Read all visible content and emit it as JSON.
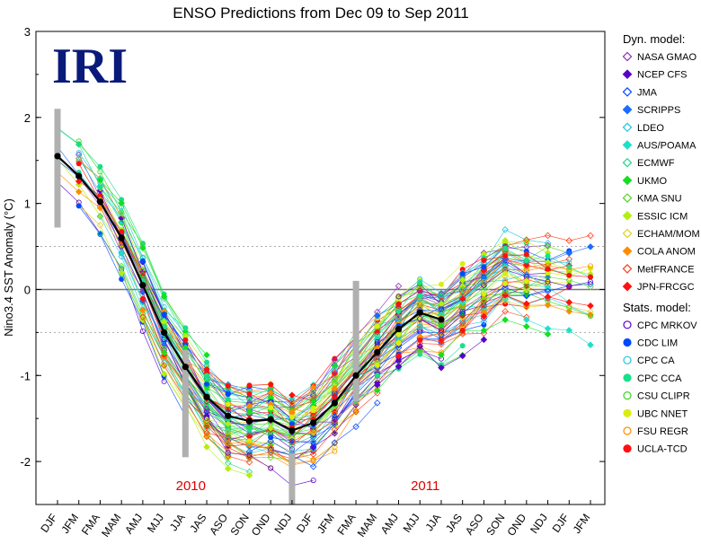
{
  "chart_data": {
    "type": "line",
    "title": "ENSO Predictions from Dec 09 to Sep 2011",
    "logo": "IRI",
    "ylabel": "Nino3.4 SST Anomaly (°C)",
    "xlabel": "",
    "ylim": [
      -2.5,
      3
    ],
    "yticks": [
      -2,
      -1,
      0,
      1,
      2,
      3
    ],
    "dotted_reference_lines": [
      0.5,
      -0.5
    ],
    "zero_line": 0,
    "categories": [
      "DJF",
      "JFM",
      "FMA",
      "MAM",
      "AMJ",
      "MJJ",
      "JJA",
      "JAS",
      "ASO",
      "SON",
      "OND",
      "NDJ",
      "DJF",
      "JFM",
      "FMA",
      "MAM",
      "AMJ",
      "MJJ",
      "JJA",
      "JAS",
      "ASO",
      "SON",
      "OND",
      "NDJ",
      "DJF",
      "JFM"
    ],
    "year_labels": [
      {
        "text": "2010",
        "category_index": 6
      },
      {
        "text": "2011",
        "category_index": 17
      }
    ],
    "observed": {
      "color": "#000000",
      "values": [
        1.55,
        1.32,
        1.02,
        0.6,
        0.05,
        -0.5,
        -0.9,
        -1.25,
        -1.47,
        -1.53,
        -1.51,
        -1.64,
        -1.55,
        -1.32,
        -1.0,
        -0.73,
        -0.46,
        -0.27,
        -0.35
      ]
    },
    "observed_spread_bars": [
      {
        "category_index": 0,
        "low": 0.72,
        "high": 2.1
      },
      {
        "category_index": 6,
        "low": -1.95,
        "high": -0.7
      },
      {
        "category_index": 11,
        "low": -2.5,
        "high": -1.9
      },
      {
        "category_index": 14,
        "low": -1.3,
        "high": 0.1
      }
    ],
    "legend_groups": [
      {
        "heading": "Dyn. model:",
        "entries": [
          {
            "name": "NASA GMAO",
            "color": "#8b2fb5",
            "marker": "diamond-open"
          },
          {
            "name": "NCEP CFS",
            "color": "#5a00c8",
            "marker": "diamond-filled"
          },
          {
            "name": "JMA",
            "color": "#0048ff",
            "marker": "diamond-open"
          },
          {
            "name": "SCRIPPS",
            "color": "#1a6cff",
            "marker": "diamond-filled"
          },
          {
            "name": "LDEO",
            "color": "#22c4dd",
            "marker": "diamond-open"
          },
          {
            "name": "AUS/POAMA",
            "color": "#1fe0c8",
            "marker": "diamond-filled"
          },
          {
            "name": "ECMWF",
            "color": "#20d890",
            "marker": "diamond-open"
          },
          {
            "name": "UKMO",
            "color": "#14e01e",
            "marker": "diamond-filled"
          },
          {
            "name": "KMA SNU",
            "color": "#55d820",
            "marker": "diamond-open"
          },
          {
            "name": "ESSIC ICM",
            "color": "#b4ee10",
            "marker": "diamond-filled"
          },
          {
            "name": "ECHAM/MOM",
            "color": "#e0d020",
            "marker": "diamond-open"
          },
          {
            "name": "COLA ANOM",
            "color": "#ff8c00",
            "marker": "diamond-filled"
          },
          {
            "name": "MetFRANCE",
            "color": "#ff3a1a",
            "marker": "diamond-open"
          },
          {
            "name": "JPN-FRCGC",
            "color": "#ff1010",
            "marker": "diamond-filled"
          }
        ]
      },
      {
        "heading": "Stats. model:",
        "entries": [
          {
            "name": "CPC MRKOV",
            "color": "#5a00c8",
            "marker": "circle-open"
          },
          {
            "name": "CDC LIM",
            "color": "#0048ff",
            "marker": "circle-filled"
          },
          {
            "name": "CPC CA",
            "color": "#22c4dd",
            "marker": "circle-open"
          },
          {
            "name": "CPC CCA",
            "color": "#18e08a",
            "marker": "circle-filled"
          },
          {
            "name": "CSU CLIPR",
            "color": "#3ad820",
            "marker": "circle-open"
          },
          {
            "name": "UBC NNET",
            "color": "#d8ee10",
            "marker": "circle-filled"
          },
          {
            "name": "FSU REGR",
            "color": "#ff8c00",
            "marker": "circle-open"
          },
          {
            "name": "UCLA-TCD",
            "color": "#ff1010",
            "marker": "circle-filled"
          }
        ]
      }
    ]
  }
}
